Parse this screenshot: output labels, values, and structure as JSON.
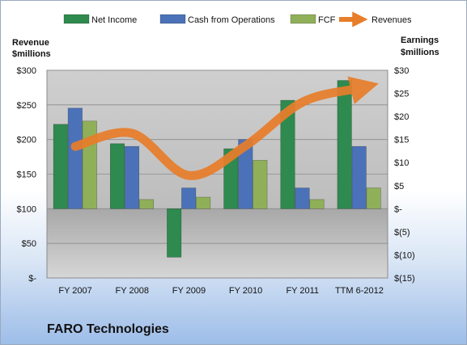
{
  "company_name": "FARO Technologies",
  "chart_data": {
    "type": "bar",
    "categories": [
      "FY 2007",
      "FY 2008",
      "FY 2009",
      "FY 2010",
      "FY 2011",
      "TTM 6-2012"
    ],
    "left_axis": {
      "title_line1": "Revenue",
      "title_line2": "$millions",
      "range": [
        0,
        300
      ],
      "ticks": [
        0,
        50,
        100,
        150,
        200,
        250,
        300
      ],
      "tick_labels": [
        "$-",
        "$50",
        "$100",
        "$150",
        "$200",
        "$250",
        "$300"
      ]
    },
    "right_axis": {
      "title_line1": "Earnings",
      "title_line2": "$millions",
      "range": [
        -15,
        30
      ],
      "ticks": [
        -15,
        -10,
        -5,
        0,
        5,
        10,
        15,
        20,
        25,
        30
      ],
      "tick_labels": [
        "$(15)",
        "$(10)",
        "$(5)",
        "$-",
        "$5",
        "$10",
        "$15",
        "$20",
        "$25",
        "$30"
      ]
    },
    "series": [
      {
        "name": "Net Income",
        "axis": "right",
        "kind": "bar",
        "color": "#2e8a4e",
        "values": [
          18.3,
          14.1,
          -10.5,
          13.0,
          23.5,
          27.8
        ]
      },
      {
        "name": "Cash from Operations",
        "axis": "right",
        "kind": "bar",
        "color": "#4b72b8",
        "values": [
          21.8,
          13.5,
          4.5,
          15.0,
          4.5,
          13.5
        ]
      },
      {
        "name": "FCF",
        "axis": "right",
        "kind": "bar",
        "color": "#8fb059",
        "values": [
          19.0,
          2.0,
          2.5,
          10.5,
          2.0,
          4.5
        ]
      },
      {
        "name": "Revenues",
        "axis": "left",
        "kind": "line",
        "color": "#e87d2a",
        "values": [
          190,
          209,
          148,
          191,
          254,
          274
        ]
      }
    ],
    "grid": true,
    "legend_position": "top"
  }
}
